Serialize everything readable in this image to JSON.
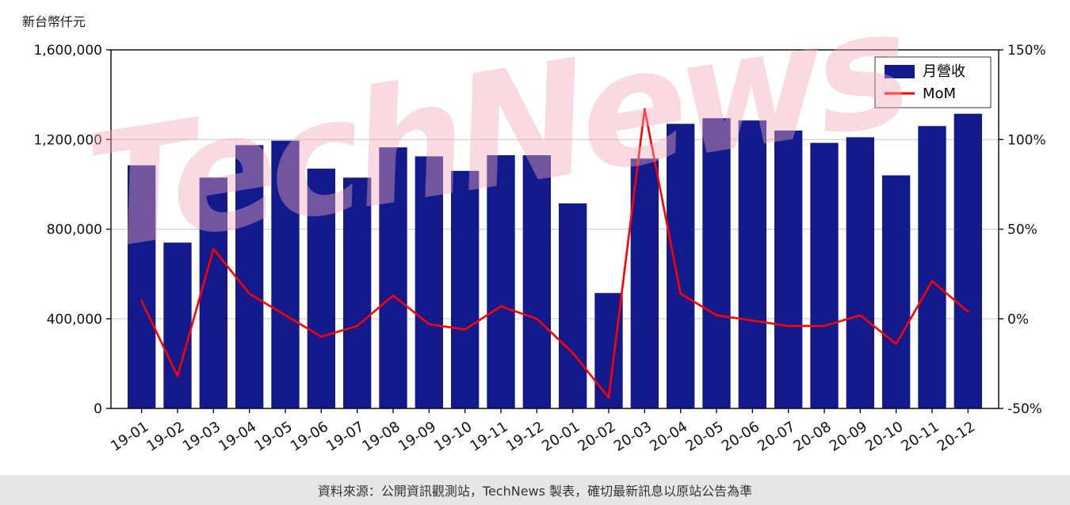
{
  "watermark": {
    "text": "TechNews"
  },
  "footer": {
    "text": "資料來源：公開資訊觀測站，TechNews 製表，確切最新訊息以原站公告為準"
  },
  "chart_data": {
    "type": "bar",
    "title": "",
    "categories": [
      "19-01",
      "19-02",
      "19-03",
      "19-04",
      "19-05",
      "19-06",
      "19-07",
      "19-08",
      "19-09",
      "19-10",
      "19-11",
      "19-12",
      "20-01",
      "20-02",
      "20-03",
      "20-04",
      "20-05",
      "20-06",
      "20-07",
      "20-08",
      "20-09",
      "20-10",
      "20-11",
      "20-12"
    ],
    "series": [
      {
        "name": "月營收",
        "type": "bar",
        "axis": "left",
        "color": "#131b8c",
        "values": [
          1085000,
          740000,
          1030000,
          1175000,
          1195000,
          1070000,
          1030000,
          1165000,
          1125000,
          1060000,
          1130000,
          1130000,
          915000,
          515000,
          1115000,
          1270000,
          1295000,
          1285000,
          1240000,
          1185000,
          1210000,
          1040000,
          1260000,
          1315000
        ]
      },
      {
        "name": "MoM",
        "type": "line",
        "axis": "right",
        "color": "#ff0000",
        "values": [
          10,
          -32,
          39,
          14,
          2,
          -10,
          -4,
          13,
          -3,
          -6,
          7,
          0,
          -19,
          -44,
          117,
          14,
          2,
          -1,
          -4,
          -4,
          2,
          -14,
          21,
          4
        ]
      }
    ],
    "left_axis": {
      "label": "新台幣仟元",
      "min": 0,
      "max": 1600000,
      "tick_values": [
        0,
        400000,
        800000,
        1200000,
        1600000
      ],
      "tick_labels": [
        "0",
        "400,000",
        "800,000",
        "1,200,000",
        "1,600,000"
      ]
    },
    "right_axis": {
      "min": -50,
      "max": 150,
      "tick_values": [
        -50,
        0,
        50,
        100,
        150
      ],
      "tick_labels": [
        "-50%",
        "0%",
        "50%",
        "100%",
        "150%"
      ]
    },
    "legend": {
      "position": "top-right",
      "entries": [
        "月營收",
        "MoM"
      ]
    },
    "grid": true
  }
}
